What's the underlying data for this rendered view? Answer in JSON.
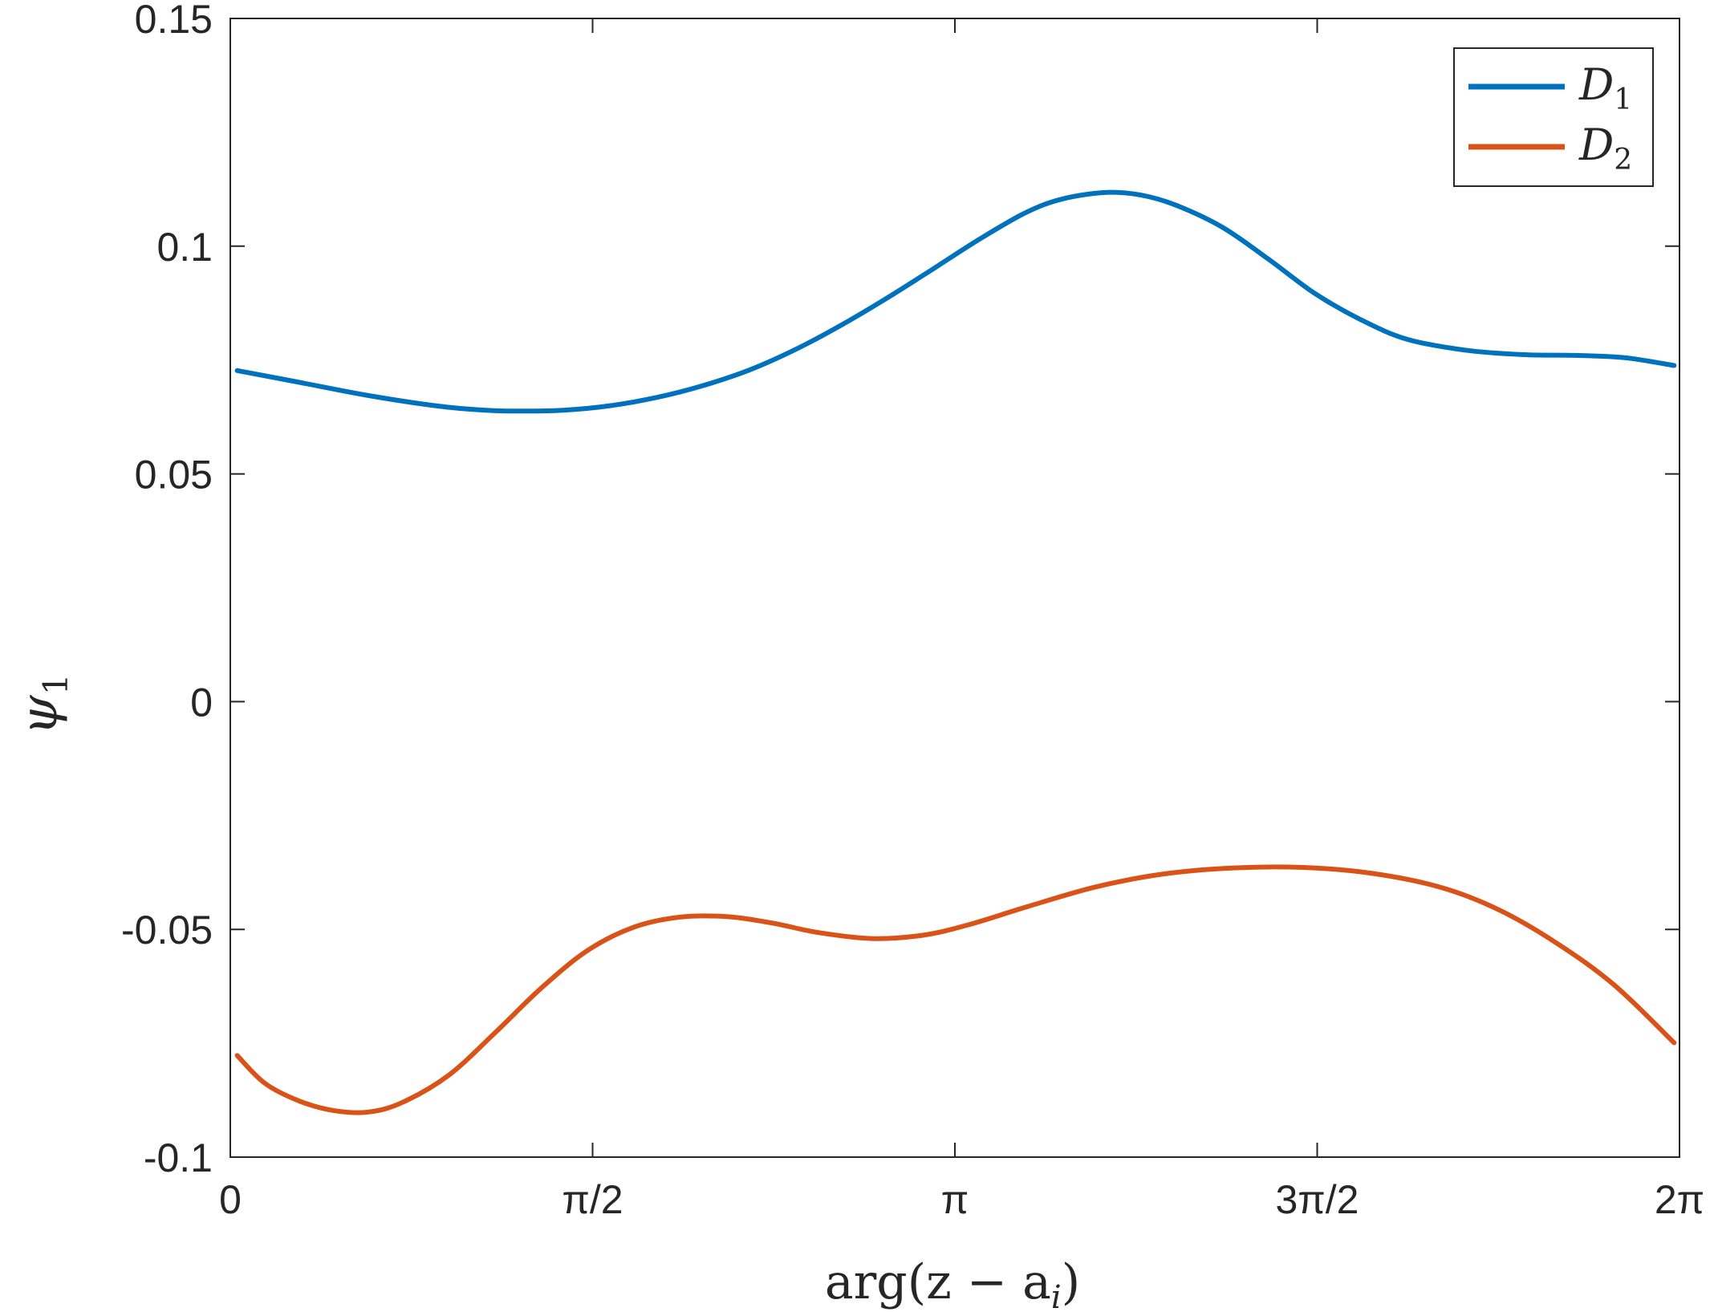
{
  "chart_data": {
    "type": "line",
    "title": "",
    "xlabel": "arg(z − a",
    "xlabel_sub": "i",
    "xlabel_close": ")",
    "ylabel": "ψ",
    "ylabel_sub": "1",
    "xlim": [
      0,
      6.2832
    ],
    "ylim": [
      -0.1,
      0.15
    ],
    "xticks": [
      {
        "value": 0,
        "label": "0"
      },
      {
        "value": 1.5708,
        "label": "π/2"
      },
      {
        "value": 3.1416,
        "label": "π"
      },
      {
        "value": 4.7124,
        "label": "3π/2"
      },
      {
        "value": 6.2832,
        "label": "2π"
      }
    ],
    "yticks": [
      {
        "value": 0.15,
        "label": "0.15"
      },
      {
        "value": 0.1,
        "label": "0.1"
      },
      {
        "value": 0.05,
        "label": "0.05"
      },
      {
        "value": 0,
        "label": "0"
      },
      {
        "value": -0.05,
        "label": "-0.05"
      },
      {
        "value": -0.1,
        "label": "-0.1"
      }
    ],
    "grid": false,
    "legend": "top-right",
    "series": [
      {
        "name": "D",
        "name_sub": "1",
        "color": "#0072BD",
        "x": [
          0.03,
          0.3,
          0.6,
          0.9,
          1.1,
          1.27,
          1.45,
          1.65,
          1.85,
          2.05,
          2.25,
          2.45,
          2.65,
          2.85,
          3.05,
          3.25,
          3.45,
          3.61,
          3.8,
          3.95,
          4.1,
          4.3,
          4.5,
          4.7,
          4.9,
          5.1,
          5.35,
          5.6,
          5.85,
          6.05,
          6.26
        ],
        "y": [
          0.0727,
          0.0701,
          0.0672,
          0.0649,
          0.064,
          0.0638,
          0.064,
          0.065,
          0.0668,
          0.0694,
          0.0728,
          0.0773,
          0.0827,
          0.0887,
          0.0951,
          0.1016,
          0.1074,
          0.1104,
          0.1118,
          0.1112,
          0.109,
          0.1042,
          0.0972,
          0.0897,
          0.0839,
          0.0796,
          0.0772,
          0.0762,
          0.076,
          0.0755,
          0.0738
        ]
      },
      {
        "name": "D",
        "name_sub": "2",
        "color": "#D95319",
        "x": [
          0.03,
          0.15,
          0.3,
          0.45,
          0.6,
          0.75,
          0.95,
          1.15,
          1.35,
          1.55,
          1.75,
          1.95,
          2.15,
          2.35,
          2.55,
          2.78,
          3.0,
          3.2,
          3.45,
          3.75,
          4.05,
          4.35,
          4.65,
          4.95,
          5.25,
          5.5,
          5.75,
          6.0,
          6.26
        ],
        "y": [
          -0.0777,
          -0.0838,
          -0.0877,
          -0.0898,
          -0.0901,
          -0.0879,
          -0.0819,
          -0.0726,
          -0.0628,
          -0.0546,
          -0.0495,
          -0.0473,
          -0.0472,
          -0.0486,
          -0.0507,
          -0.052,
          -0.0513,
          -0.049,
          -0.0451,
          -0.0407,
          -0.0378,
          -0.0365,
          -0.0364,
          -0.0377,
          -0.0408,
          -0.0457,
          -0.053,
          -0.0622,
          -0.0749
        ]
      }
    ]
  }
}
